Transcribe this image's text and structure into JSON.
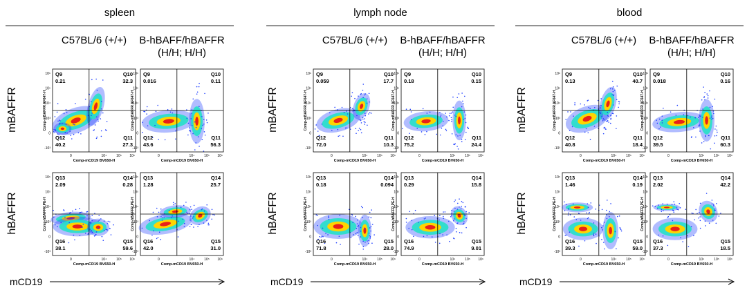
{
  "panels": [
    {
      "tissue": "spleen",
      "groups": [
        "C57BL/6 (+/+)",
        "B-hBAFF/hBAFFR\n(H/H; H/H)"
      ],
      "rows": [
        "mBAFFR",
        "hBAFFR"
      ],
      "x_axis_label": "mCD19",
      "plots": [
        {
          "ylabel": "Comp-mBAFFR AF647-H",
          "xlabel": "Comp-mCD19 BV650-H",
          "q": [
            {
              "name": "Q9",
              "value": "0.21"
            },
            {
              "name": "Q10",
              "value": "32.3"
            },
            {
              "name": "Q11",
              "value": "27.3"
            },
            {
              "name": "Q12",
              "value": "40.2"
            }
          ]
        },
        {
          "ylabel": "Comp-mBAFFR AF647-H",
          "xlabel": "Comp-mCD19 BV650-H",
          "q": [
            {
              "name": "Q9",
              "value": "0.016"
            },
            {
              "name": "Q10",
              "value": "0.11"
            },
            {
              "name": "Q11",
              "value": "56.3"
            },
            {
              "name": "Q12",
              "value": "43.6"
            }
          ]
        },
        {
          "ylabel": "Comp-hBAFFR PE-H",
          "xlabel": "Comp-mCD19 BV650-H",
          "q": [
            {
              "name": "Q13",
              "value": "2.09"
            },
            {
              "name": "Q14",
              "value": "0.28"
            },
            {
              "name": "Q15",
              "value": "59.6"
            },
            {
              "name": "Q16",
              "value": "38.1"
            }
          ]
        },
        {
          "ylabel": "Comp-hBAFFR PE-H",
          "xlabel": "Comp-mCD19 BV650-H",
          "q": [
            {
              "name": "Q13",
              "value": "1.28"
            },
            {
              "name": "Q14",
              "value": "25.7"
            },
            {
              "name": "Q15",
              "value": "31.0"
            },
            {
              "name": "Q16",
              "value": "42.0"
            }
          ]
        }
      ]
    },
    {
      "tissue": "lymph node",
      "groups": [
        "C57BL/6 (+/+)",
        "B-hBAFF/hBAFFR\n(H/H; H/H)"
      ],
      "rows": [
        "mBAFFR",
        "hBAFFR"
      ],
      "x_axis_label": "mCD19",
      "plots": [
        {
          "ylabel": "Comp-mBAFFR AF647-H",
          "xlabel": "Comp-mCD19 BV650-H",
          "q": [
            {
              "name": "Q9",
              "value": "0.059"
            },
            {
              "name": "Q10",
              "value": "17.7"
            },
            {
              "name": "Q11",
              "value": "10.3"
            },
            {
              "name": "Q12",
              "value": "72.0"
            }
          ]
        },
        {
          "ylabel": "Comp-mBAFFR AF647-H",
          "xlabel": "Comp-mCD19 BV650-H",
          "q": [
            {
              "name": "Q9",
              "value": "0.18"
            },
            {
              "name": "Q10",
              "value": "0.15"
            },
            {
              "name": "Q11",
              "value": "24.4"
            },
            {
              "name": "Q12",
              "value": "75.2"
            }
          ]
        },
        {
          "ylabel": "Comp-hBAFFR PE-H",
          "xlabel": "Comp-mCD19 BV650-H",
          "q": [
            {
              "name": "Q13",
              "value": "0.18"
            },
            {
              "name": "Q14",
              "value": "0.094"
            },
            {
              "name": "Q15",
              "value": "28.0"
            },
            {
              "name": "Q16",
              "value": "71.8"
            }
          ]
        },
        {
          "ylabel": "Comp-hBAFFR PE-H",
          "xlabel": "Comp-mCD19 BV650-H",
          "q": [
            {
              "name": "Q13",
              "value": "0.29"
            },
            {
              "name": "Q14",
              "value": "15.8"
            },
            {
              "name": "Q15",
              "value": "9.01"
            },
            {
              "name": "Q16",
              "value": "74.9"
            }
          ]
        }
      ]
    },
    {
      "tissue": "blood",
      "groups": [
        "C57BL/6 (+/+)",
        "B-hBAFF/hBAFFR\n(H/H; H/H)"
      ],
      "rows": [
        "mBAFFR",
        "hBAFFR"
      ],
      "x_axis_label": "mCD19",
      "plots": [
        {
          "ylabel": "Comp-mBAFFR AF647-H",
          "xlabel": "Comp-mCD19 BV650-H",
          "q": [
            {
              "name": "Q9",
              "value": "0.13"
            },
            {
              "name": "Q10",
              "value": "40.7"
            },
            {
              "name": "Q11",
              "value": "18.4"
            },
            {
              "name": "Q12",
              "value": "40.8"
            }
          ]
        },
        {
          "ylabel": "Comp-mBAFFR AF647-H",
          "xlabel": "Comp-mCD19 BV650-H",
          "q": [
            {
              "name": "Q9",
              "value": "0.018"
            },
            {
              "name": "Q10",
              "value": "0.16"
            },
            {
              "name": "Q11",
              "value": "60.3"
            },
            {
              "name": "Q12",
              "value": "39.5"
            }
          ]
        },
        {
          "ylabel": "Comp-hBAFFR PE-H",
          "xlabel": "Comp-mCD19 BV650-H",
          "q": [
            {
              "name": "Q13",
              "value": "1.46"
            },
            {
              "name": "Q14",
              "value": "0.19"
            },
            {
              "name": "Q15",
              "value": "59.0"
            },
            {
              "name": "Q16",
              "value": "39.3"
            }
          ]
        },
        {
          "ylabel": "Comp-hBAFFR PE-H",
          "xlabel": "Comp-mCD19 BV650-H",
          "q": [
            {
              "name": "Q13",
              "value": "2.02"
            },
            {
              "name": "Q14",
              "value": "42.2"
            },
            {
              "name": "Q15",
              "value": "18.5"
            },
            {
              "name": "Q16",
              "value": "37.3"
            }
          ]
        }
      ]
    }
  ],
  "x_ticks": [
    "0",
    "10⁴",
    "10⁵",
    "10⁶"
  ],
  "y_ticks": [
    "10⁶",
    "10⁵",
    "10⁴",
    "10³",
    "0",
    "-10³"
  ],
  "colors": {
    "low": "#1f3fff",
    "mid": "#26e0c8",
    "high": "#ffd400",
    "peak": "#e8201a"
  }
}
